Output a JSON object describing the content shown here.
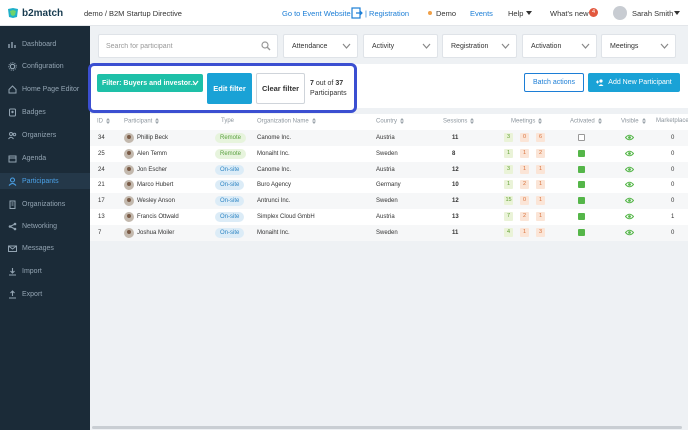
{
  "topbar": {
    "logo_text": "b2match",
    "breadcrumb": "demo / B2M Startup Directive",
    "go_to_event": "Go to Event Website",
    "registration": "| Registration",
    "demo": "Demo",
    "events": "Events",
    "help": "Help",
    "whats_new": "What's new",
    "notification_count": "4",
    "username": "Sarah Smith"
  },
  "sidebar": {
    "items": [
      {
        "label": "Dashboard",
        "icon": "chart-bar-icon"
      },
      {
        "label": "Configuration",
        "icon": "gear-icon"
      },
      {
        "label": "Home Page Editor",
        "icon": "home-icon"
      },
      {
        "label": "Badges",
        "icon": "badge-icon"
      },
      {
        "label": "Organizers",
        "icon": "users-icon"
      },
      {
        "label": "Agenda",
        "icon": "calendar-icon"
      },
      {
        "label": "Participants",
        "icon": "user-icon",
        "active": true
      },
      {
        "label": "Organizations",
        "icon": "building-icon"
      },
      {
        "label": "Networking",
        "icon": "network-icon"
      },
      {
        "label": "Messages",
        "icon": "mail-icon"
      },
      {
        "label": "Import",
        "icon": "import-icon"
      },
      {
        "label": "Export",
        "icon": "export-icon"
      }
    ]
  },
  "filters": {
    "search_placeholder": "Search for participant",
    "attendance": "Attendance",
    "activity": "Activity",
    "registration": "Registration",
    "activation": "Activation",
    "meetings": "Meetings"
  },
  "filterbar": {
    "active_filter": "Filter: Buyers and investor...",
    "edit_filter": "Edit filter",
    "clear_filter": "Clear filter",
    "count_shown": "7",
    "count_out_of": "out of",
    "count_total": "37",
    "count_label": "Participants",
    "batch_actions": "Batch actions",
    "add_participant": "Add New Participant"
  },
  "table": {
    "headers": {
      "id": "ID",
      "participant": "Participant",
      "type": "Type",
      "organization": "Organization Name",
      "country": "Country",
      "sessions": "Sessions",
      "meetings": "Meetings",
      "activated": "Activated",
      "visible": "Visible",
      "marketplace": "Marketplace"
    },
    "rows": [
      {
        "id": "34",
        "name": "Phillip Beck",
        "type": "Remote",
        "org": "Canome Inc.",
        "country": "Austria",
        "sessions": "11",
        "m1": "3",
        "m2": "0",
        "m3": "6",
        "activated": false,
        "market": "0"
      },
      {
        "id": "25",
        "name": "Alen Temm",
        "type": "Remote",
        "org": "Monaiht Inc.",
        "country": "Sweden",
        "sessions": "8",
        "m1": "1",
        "m2": "1",
        "m3": "2",
        "activated": true,
        "market": "0"
      },
      {
        "id": "24",
        "name": "Jon Escher",
        "type": "On-site",
        "org": "Canome Inc.",
        "country": "Austria",
        "sessions": "12",
        "m1": "3",
        "m2": "1",
        "m3": "1",
        "activated": true,
        "market": "0"
      },
      {
        "id": "21",
        "name": "Marco Hubert",
        "type": "On-site",
        "org": "Buro Agency",
        "country": "Germany",
        "sessions": "10",
        "m1": "1",
        "m2": "2",
        "m3": "1",
        "activated": true,
        "market": "0"
      },
      {
        "id": "17",
        "name": "Wesley Anson",
        "type": "On-site",
        "org": "Antrunci Inc.",
        "country": "Sweden",
        "sessions": "12",
        "m1": "15",
        "m2": "0",
        "m3": "1",
        "activated": true,
        "market": "0"
      },
      {
        "id": "13",
        "name": "Francis Ottwald",
        "type": "On-site",
        "org": "Simplex Cloud GmbH",
        "country": "Austria",
        "sessions": "13",
        "m1": "7",
        "m2": "2",
        "m3": "1",
        "activated": true,
        "market": "1"
      },
      {
        "id": "7",
        "name": "Joshua Moiler",
        "type": "On-site",
        "org": "Monaiht Inc.",
        "country": "Sweden",
        "sessions": "11",
        "m1": "4",
        "m2": "1",
        "m3": "3",
        "activated": true,
        "market": "0"
      }
    ]
  }
}
